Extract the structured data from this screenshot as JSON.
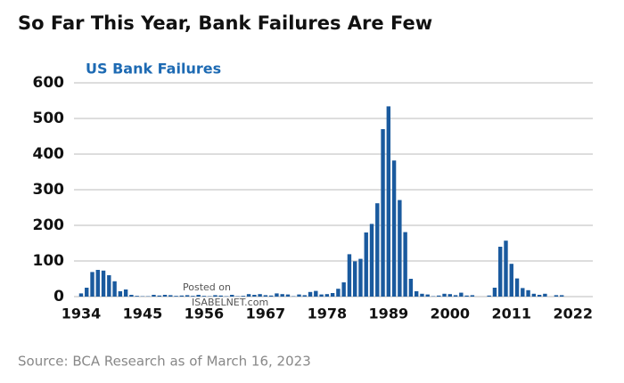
{
  "chart_data": {
    "type": "bar",
    "title": "So Far This Year, Bank Failures Are Few",
    "subtitle": "US Bank Failures",
    "source": "Source: BCA Research as of March 16, 2023",
    "annotations": [
      "Posted on",
      "ISABELNET.com"
    ],
    "color": "#1a5a9e",
    "grid": true,
    "x": [
      1934,
      1935,
      1936,
      1937,
      1938,
      1939,
      1940,
      1941,
      1942,
      1943,
      1944,
      1945,
      1946,
      1947,
      1948,
      1949,
      1950,
      1951,
      1952,
      1953,
      1954,
      1955,
      1956,
      1957,
      1958,
      1959,
      1960,
      1961,
      1962,
      1963,
      1964,
      1965,
      1966,
      1967,
      1968,
      1969,
      1970,
      1971,
      1972,
      1973,
      1974,
      1975,
      1976,
      1977,
      1978,
      1979,
      1980,
      1981,
      1982,
      1983,
      1984,
      1985,
      1986,
      1987,
      1988,
      1989,
      1990,
      1991,
      1992,
      1993,
      1994,
      1995,
      1996,
      1997,
      1998,
      1999,
      2000,
      2001,
      2002,
      2003,
      2004,
      2005,
      2006,
      2007,
      2008,
      2009,
      2010,
      2011,
      2012,
      2013,
      2014,
      2015,
      2016,
      2017,
      2018,
      2019,
      2020,
      2021,
      2022
    ],
    "values": [
      9,
      25,
      69,
      75,
      73,
      60,
      43,
      15,
      20,
      5,
      2,
      1,
      1,
      5,
      3,
      5,
      4,
      2,
      3,
      4,
      2,
      5,
      2,
      1,
      4,
      3,
      1,
      5,
      1,
      2,
      7,
      5,
      7,
      4,
      3,
      9,
      7,
      6,
      1,
      6,
      4,
      13,
      16,
      6,
      7,
      10,
      22,
      40,
      119,
      99,
      106,
      180,
      204,
      262,
      470,
      534,
      382,
      271,
      181,
      50,
      15,
      8,
      6,
      1,
      3,
      8,
      7,
      4,
      11,
      3,
      4,
      0,
      0,
      3,
      25,
      140,
      157,
      92,
      51,
      24,
      18,
      8,
      5,
      8,
      0,
      4,
      4,
      0,
      0
    ],
    "xlim": [
      1933,
      2023
    ],
    "xticks": [
      1934,
      1945,
      1956,
      1967,
      1978,
      1989,
      2000,
      2011,
      2022
    ],
    "ylim": [
      0,
      600
    ],
    "yticks": [
      0,
      100,
      200,
      300,
      400,
      500,
      600
    ]
  }
}
